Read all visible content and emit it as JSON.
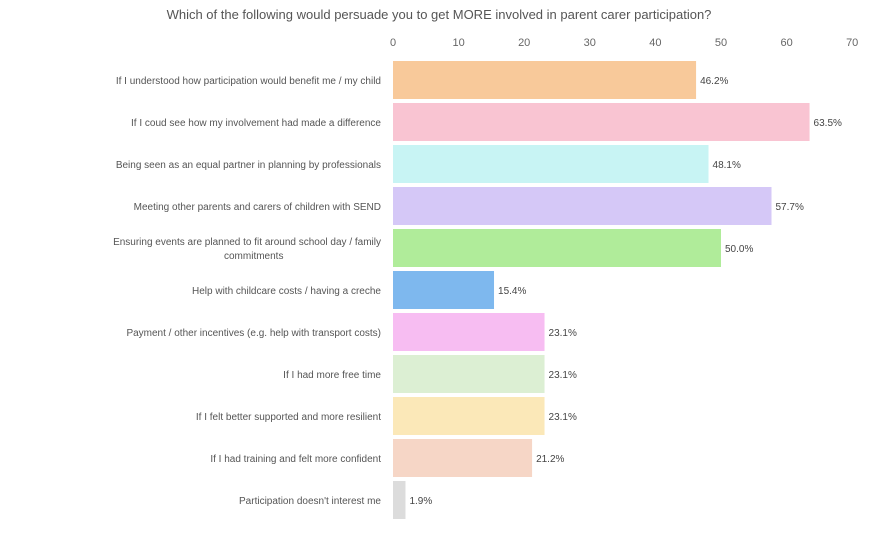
{
  "chart_data": {
    "type": "bar",
    "orientation": "horizontal",
    "title": "Which of the following would persuade you to get MORE involved in parent carer participation?",
    "xlim": [
      0,
      70
    ],
    "xticks": [
      "0",
      "10",
      "20",
      "30",
      "40",
      "50",
      "60",
      "70"
    ],
    "grid": false,
    "legend": "none",
    "categories": [
      [
        "If I understood how participation would benefit me / my child"
      ],
      [
        "If I coud see how my involvement had made a difference"
      ],
      [
        "Being seen as an equal partner in planning by professionals"
      ],
      [
        "Meeting other parents and carers of children with SEND"
      ],
      [
        "Ensuring events are planned to fit around school day / family",
        "commitments"
      ],
      [
        "Help with childcare costs / having a creche"
      ],
      [
        "Payment / other incentives (e.g. help with transport costs)"
      ],
      [
        "If I had more free time"
      ],
      [
        "If I felt better supported and more resilient"
      ],
      [
        "If I had training and felt more confident"
      ],
      [
        "Participation doesn't interest me"
      ]
    ],
    "values": [
      46.2,
      63.5,
      48.1,
      57.7,
      50.0,
      15.4,
      23.1,
      23.1,
      23.1,
      21.2,
      1.9
    ],
    "value_labels": [
      "46.2%",
      "63.5%",
      "48.1%",
      "57.7%",
      "50.0%",
      "15.4%",
      "23.1%",
      "23.1%",
      "23.1%",
      "21.2%",
      "1.9%"
    ],
    "colors": [
      "#f8c99a",
      "#f9c4d2",
      "#c8f4f4",
      "#d5c8f7",
      "#b0ec9a",
      "#7eb8ee",
      "#f7bdf2",
      "#dcefd3",
      "#fbe8b8",
      "#f6d6c6",
      "#dcdcdc"
    ]
  }
}
